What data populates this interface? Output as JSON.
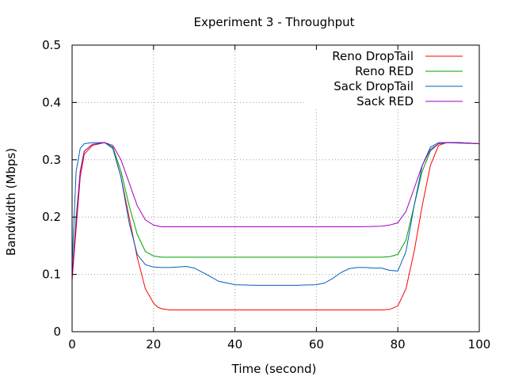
{
  "chart_data": {
    "type": "line",
    "title": "Experiment 3 - Throughput",
    "xlabel": "Time (second)",
    "ylabel": "Bandwidth (Mbps)",
    "xlim": [
      0,
      100
    ],
    "ylim": [
      0,
      0.5
    ],
    "xticks": [
      0,
      20,
      40,
      60,
      80,
      100
    ],
    "yticks": [
      0,
      0.1,
      0.2,
      0.3,
      0.4,
      0.5
    ],
    "xtick_labels": [
      "0",
      "20",
      "40",
      "60",
      "80",
      "100"
    ],
    "ytick_labels": [
      "0",
      "0.1",
      "0.2",
      "0.3",
      "0.4",
      "0.5"
    ],
    "grid": true,
    "legend_position": "top-right",
    "series": [
      {
        "name": "Reno DropTail",
        "color": "#ff0000",
        "x": [
          0,
          1,
          2,
          3,
          5,
          8,
          10,
          12,
          14,
          16,
          18,
          20,
          21,
          22,
          24,
          30,
          40,
          50,
          60,
          70,
          76,
          78,
          80,
          82,
          84,
          86,
          88,
          90,
          92,
          95,
          100
        ],
        "y": [
          0.09,
          0.18,
          0.27,
          0.31,
          0.325,
          0.33,
          0.32,
          0.27,
          0.2,
          0.13,
          0.075,
          0.05,
          0.043,
          0.04,
          0.038,
          0.038,
          0.038,
          0.038,
          0.038,
          0.038,
          0.038,
          0.039,
          0.045,
          0.075,
          0.14,
          0.22,
          0.29,
          0.325,
          0.33,
          0.33,
          0.328
        ]
      },
      {
        "name": "Reno RED",
        "color": "#00a000",
        "x": [
          0,
          1,
          2,
          3,
          5,
          8,
          10,
          12,
          14,
          16,
          18,
          20,
          22,
          24,
          30,
          40,
          50,
          60,
          70,
          76,
          78,
          80,
          82,
          84,
          86,
          88,
          90,
          92,
          95,
          100
        ],
        "y": [
          0.1,
          0.2,
          0.28,
          0.315,
          0.327,
          0.33,
          0.322,
          0.28,
          0.22,
          0.17,
          0.14,
          0.132,
          0.13,
          0.13,
          0.13,
          0.13,
          0.13,
          0.13,
          0.13,
          0.13,
          0.131,
          0.135,
          0.16,
          0.22,
          0.28,
          0.315,
          0.328,
          0.33,
          0.33,
          0.328
        ]
      },
      {
        "name": "Sack DropTail",
        "color": "#0060c0",
        "x": [
          0,
          0.5,
          1,
          2,
          3,
          5,
          8,
          10,
          12,
          14,
          16,
          18,
          20,
          22,
          24,
          26,
          28,
          30,
          33,
          36,
          40,
          45,
          50,
          55,
          60,
          62,
          64,
          66,
          68,
          70,
          72,
          74,
          76,
          78,
          80,
          82,
          84,
          86,
          88,
          90,
          92,
          95,
          100
        ],
        "y": [
          0.12,
          0.2,
          0.28,
          0.32,
          0.328,
          0.33,
          0.33,
          0.32,
          0.27,
          0.19,
          0.135,
          0.117,
          0.113,
          0.112,
          0.112,
          0.113,
          0.114,
          0.111,
          0.1,
          0.088,
          0.082,
          0.081,
          0.081,
          0.081,
          0.082,
          0.085,
          0.093,
          0.103,
          0.11,
          0.112,
          0.112,
          0.111,
          0.111,
          0.107,
          0.106,
          0.14,
          0.22,
          0.29,
          0.322,
          0.33,
          0.33,
          0.329,
          0.328
        ]
      },
      {
        "name": "Sack RED",
        "color": "#a000c0",
        "x": [
          0,
          1,
          2,
          3,
          5,
          8,
          10,
          12,
          14,
          16,
          18,
          20,
          22,
          24,
          30,
          40,
          50,
          60,
          70,
          76,
          78,
          80,
          82,
          84,
          86,
          88,
          90,
          92,
          95,
          100
        ],
        "y": [
          0.095,
          0.19,
          0.28,
          0.315,
          0.327,
          0.33,
          0.325,
          0.3,
          0.26,
          0.22,
          0.195,
          0.186,
          0.183,
          0.183,
          0.183,
          0.183,
          0.183,
          0.183,
          0.183,
          0.184,
          0.186,
          0.19,
          0.21,
          0.25,
          0.29,
          0.318,
          0.328,
          0.33,
          0.33,
          0.328
        ]
      }
    ]
  }
}
